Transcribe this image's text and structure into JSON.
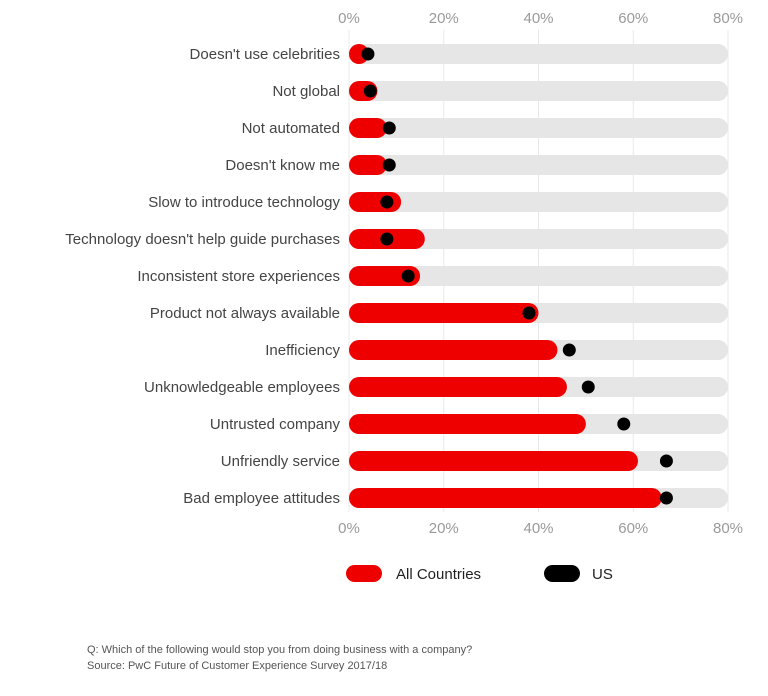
{
  "chart_data": {
    "type": "bar",
    "orientation": "horizontal",
    "categories": [
      "Doesn't use celebrities",
      "Not global",
      "Not automated",
      "Doesn't know me",
      "Slow to introduce technology",
      "Technology doesn't help guide purchases",
      "Inconsistent store experiences",
      "Product not always available",
      "Inefficiency",
      "Unknowledgeable employees",
      "Untrusted company",
      "Unfriendly service",
      "Bad employee attitudes"
    ],
    "series": [
      {
        "name": "All Countries",
        "marker": "bar",
        "color": "#ee0000",
        "values": [
          4,
          6,
          8,
          8,
          11,
          16,
          15,
          40,
          44,
          46,
          50,
          61,
          66
        ]
      },
      {
        "name": "US",
        "marker": "dot",
        "color": "#000000",
        "values": [
          4,
          4.5,
          8.5,
          8.5,
          8,
          8,
          12.5,
          38,
          46.5,
          50.5,
          58,
          67,
          67
        ]
      }
    ],
    "track_max": 80,
    "xlim": [
      0,
      80
    ],
    "xticks": [
      "0%",
      "20%",
      "40%",
      "60%",
      "80%"
    ],
    "xtick_values": [
      0,
      20,
      40,
      60,
      80
    ],
    "legend_position": "bottom",
    "grid": true
  },
  "footnote": {
    "question": "Q: Which of the following would stop you from doing business with a company?",
    "source": "Source: PwC Future of Customer Experience Survey 2017/18"
  },
  "colors": {
    "bar": "#ee0000",
    "dot": "#000000",
    "track": "#e6e6e6",
    "grid": "#e8e8e8",
    "label": "#444444",
    "tick": "#9a9a9a"
  }
}
